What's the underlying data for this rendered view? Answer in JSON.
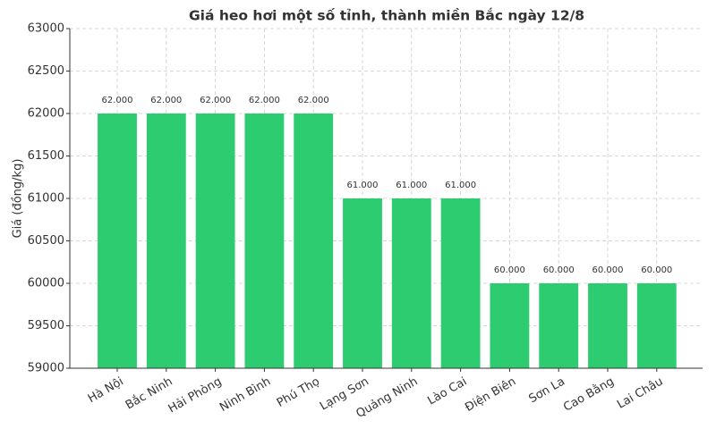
{
  "chart_data": {
    "type": "bar",
    "title": "Giá heo hơi một số tỉnh, thành miền Bắc ngày 12/8",
    "y_label": "Giá (đồng/kg)",
    "categories": [
      "Hà Nội",
      "Bắc Ninh",
      "Hải Phòng",
      "Ninh Bình",
      "Phú Thọ",
      "Lạng Sơn",
      "Quảng Ninh",
      "Lào Cai",
      "Điện Biên",
      "Sơn La",
      "Cao Bằng",
      "Lai Châu"
    ],
    "values": [
      62000,
      62000,
      62000,
      62000,
      62000,
      61000,
      61000,
      61000,
      60000,
      60000,
      60000,
      60000
    ],
    "value_labels": [
      "62.000",
      "62.000",
      "62.000",
      "62.000",
      "62.000",
      "61.000",
      "61.000",
      "61.000",
      "60.000",
      "60.000",
      "60.000",
      "60.000"
    ],
    "color": "#2ecc71",
    "ylim": [
      59000,
      63000
    ],
    "yticks": [
      59000,
      59500,
      60000,
      60500,
      61000,
      61500,
      62000,
      62500,
      63000
    ],
    "grid": true
  }
}
